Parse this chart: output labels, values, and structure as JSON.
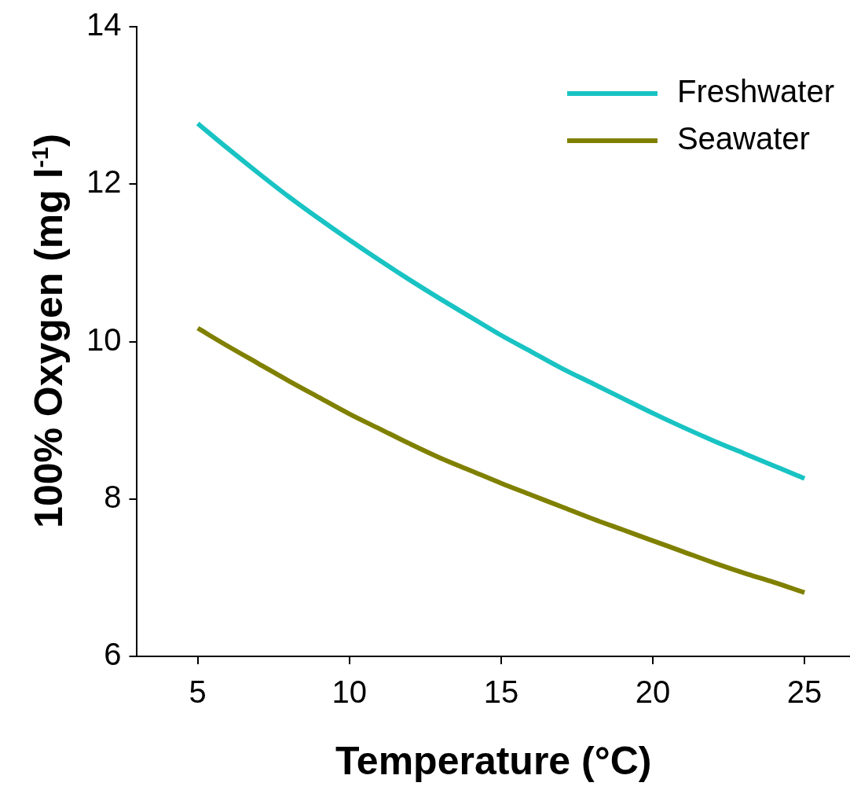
{
  "chart_data": {
    "type": "line",
    "xlabel": "Temperature (°C)",
    "ylabel": "100% Oxygen (mg l$^{-1}$)",
    "x": [
      5,
      6,
      7,
      8,
      9,
      10,
      11,
      12,
      13,
      14,
      15,
      16,
      17,
      18,
      19,
      20,
      21,
      22,
      23,
      24,
      25
    ],
    "series": [
      {
        "name": "Freshwater",
        "color": "#19c3c3",
        "values": [
          12.77,
          12.45,
          12.14,
          11.84,
          11.56,
          11.29,
          11.03,
          10.78,
          10.54,
          10.31,
          10.08,
          9.87,
          9.66,
          9.47,
          9.28,
          9.09,
          8.91,
          8.74,
          8.58,
          8.42,
          8.26
        ]
      },
      {
        "name": "Seawater",
        "color": "#808000",
        "values": [
          10.17,
          9.94,
          9.72,
          9.5,
          9.29,
          9.08,
          8.89,
          8.7,
          8.52,
          8.36,
          8.2,
          8.05,
          7.9,
          7.75,
          7.61,
          7.47,
          7.33,
          7.19,
          7.06,
          6.94,
          6.81
        ]
      }
    ],
    "xlim": [
      3,
      26.5
    ],
    "xticks": [
      5,
      10,
      15,
      20,
      25
    ],
    "ylim": [
      6,
      14
    ],
    "yticks": [
      6,
      8,
      10,
      12,
      14
    ],
    "grid": false,
    "legend": "top right",
    "marker": "none",
    "line_style": "solid"
  }
}
